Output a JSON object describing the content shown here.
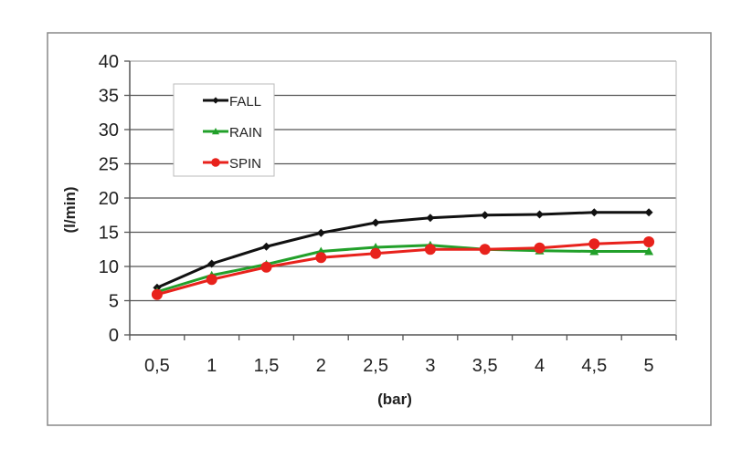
{
  "chart_data": {
    "type": "line",
    "title": "",
    "xlabel": "(bar)",
    "ylabel": "(l/min)",
    "categories": [
      "0,5",
      "1",
      "1,5",
      "2",
      "2,5",
      "3",
      "3,5",
      "4",
      "4,5",
      "5"
    ],
    "ylim": [
      0,
      40
    ],
    "yticks": [
      0,
      5,
      10,
      15,
      20,
      25,
      30,
      35,
      40
    ],
    "grid": true,
    "legend_position": "top-left",
    "series": [
      {
        "name": "FALL",
        "color": "#111111",
        "marker": "diamond",
        "values": [
          6.9,
          10.4,
          12.9,
          14.9,
          16.4,
          17.1,
          17.5,
          17.6,
          17.9,
          17.9
        ]
      },
      {
        "name": "RAIN",
        "color": "#22a02a",
        "marker": "triangle",
        "values": [
          6.3,
          8.7,
          10.3,
          12.2,
          12.8,
          13.1,
          12.5,
          12.3,
          12.2,
          12.2
        ]
      },
      {
        "name": "SPIN",
        "color": "#e8221c",
        "marker": "circle",
        "values": [
          5.9,
          8.1,
          9.9,
          11.3,
          11.9,
          12.5,
          12.5,
          12.7,
          13.3,
          13.6
        ]
      }
    ]
  }
}
